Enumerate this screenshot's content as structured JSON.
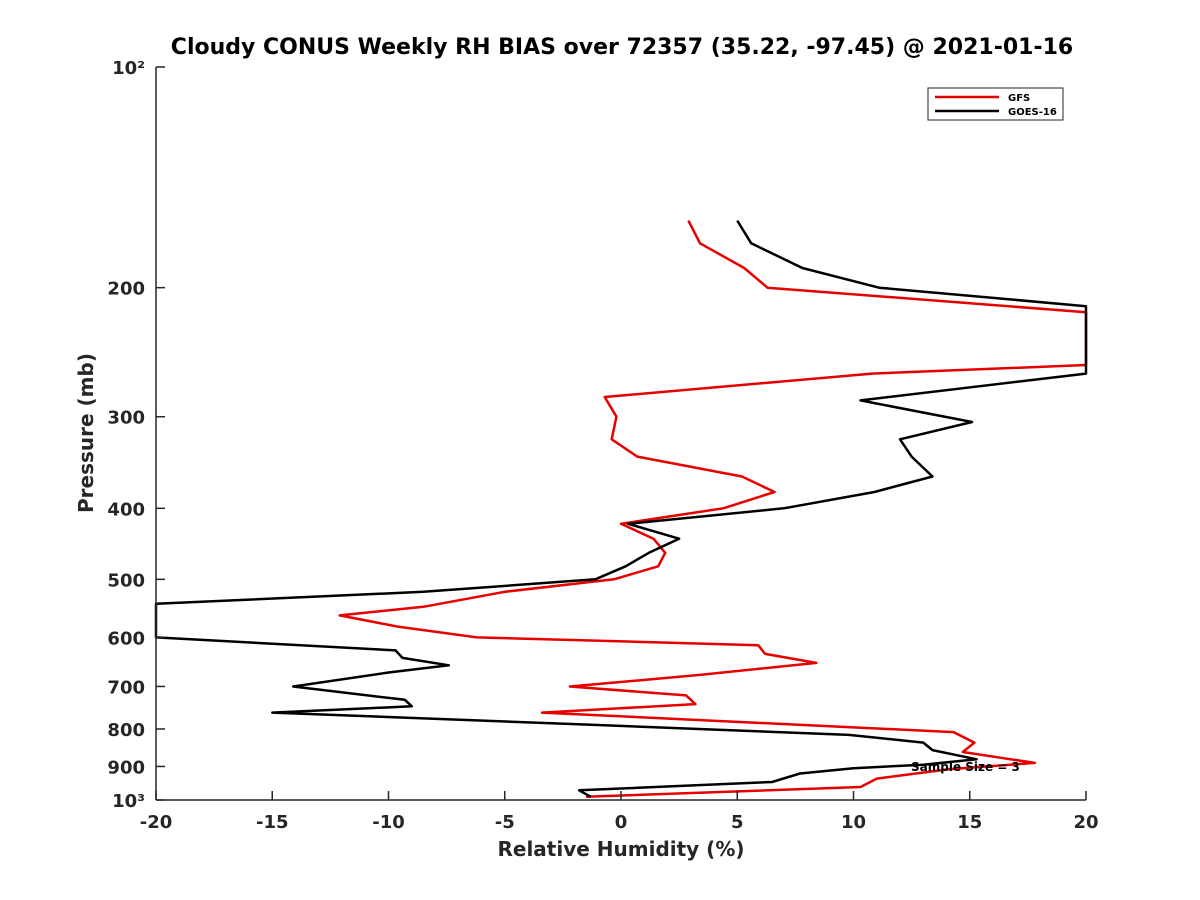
{
  "chart_data": {
    "type": "line",
    "title": "Cloudy CONUS Weekly RH BIAS over 72357 (35.22, -97.45) @ 2021-01-16",
    "xlabel": "Relative Humidity (%)",
    "ylabel": "Pressure (mb)",
    "xlim": [
      -20,
      20
    ],
    "ylim": [
      100,
      1000
    ],
    "y_scale": "log",
    "y_reversed": true,
    "x_ticks": [
      -20,
      -15,
      -10,
      -5,
      0,
      5,
      10,
      15,
      20
    ],
    "x_tick_labels": [
      "-20",
      "-15",
      "-10",
      "-5",
      "0",
      "5",
      "10",
      "15",
      "20"
    ],
    "y_ticks": [
      100,
      200,
      300,
      400,
      500,
      600,
      700,
      800,
      900,
      1000
    ],
    "y_tick_labels": [
      "10²",
      "200",
      "300",
      "400",
      "500",
      "600",
      "700",
      "800",
      "900",
      "10³"
    ],
    "grid": false,
    "legend_position": "top-right",
    "annotation": "Sample Size = 3",
    "series": [
      {
        "name": "GFS",
        "color": "#e60000",
        "points": [
          [
            2.9,
            162
          ],
          [
            3.4,
            174
          ],
          [
            5.3,
            188
          ],
          [
            6.3,
            200
          ],
          [
            20.5,
            216
          ],
          [
            20.5,
            255
          ],
          [
            10.8,
            262
          ],
          [
            -0.7,
            282
          ],
          [
            -0.2,
            300
          ],
          [
            -0.4,
            322
          ],
          [
            0.7,
            340
          ],
          [
            5.2,
            362
          ],
          [
            6.6,
            380
          ],
          [
            4.4,
            400
          ],
          [
            0.0,
            420
          ],
          [
            1.4,
            440
          ],
          [
            1.9,
            460
          ],
          [
            1.6,
            480
          ],
          [
            -0.3,
            500
          ],
          [
            -5.0,
            520
          ],
          [
            -8.5,
            545
          ],
          [
            -12.1,
            560
          ],
          [
            -9.6,
            580
          ],
          [
            -6.2,
            600
          ],
          [
            5.9,
            615
          ],
          [
            6.2,
            632
          ],
          [
            8.4,
            650
          ],
          [
            3.4,
            675
          ],
          [
            -2.2,
            700
          ],
          [
            2.8,
            720
          ],
          [
            3.2,
            740
          ],
          [
            -3.4,
            760
          ],
          [
            14.3,
            808
          ],
          [
            15.2,
            835
          ],
          [
            14.7,
            860
          ],
          [
            17.8,
            890
          ],
          [
            14.1,
            908
          ],
          [
            11.0,
            935
          ],
          [
            10.3,
            960
          ],
          [
            -1.5,
            990
          ]
        ]
      },
      {
        "name": "GOES-16",
        "color": "#000000",
        "points": [
          [
            5.0,
            162
          ],
          [
            5.6,
            174
          ],
          [
            7.8,
            188
          ],
          [
            11.1,
            200
          ],
          [
            20.5,
            212
          ],
          [
            20.5,
            262
          ],
          [
            10.3,
            285
          ],
          [
            15.1,
            305
          ],
          [
            12.0,
            322
          ],
          [
            12.5,
            340
          ],
          [
            13.4,
            362
          ],
          [
            10.9,
            380
          ],
          [
            7.0,
            400
          ],
          [
            0.3,
            420
          ],
          [
            2.5,
            440
          ],
          [
            1.2,
            460
          ],
          [
            0.2,
            480
          ],
          [
            -1.1,
            500
          ],
          [
            -8.5,
            520
          ],
          [
            -20.0,
            540
          ],
          [
            -20.3,
            600
          ],
          [
            -9.7,
            625
          ],
          [
            -9.4,
            640
          ],
          [
            -7.4,
            655
          ],
          [
            -10.0,
            670
          ],
          [
            -14.1,
            700
          ],
          [
            -9.3,
            730
          ],
          [
            -9.0,
            745
          ],
          [
            -15.0,
            760
          ],
          [
            -1.0,
            790
          ],
          [
            9.8,
            815
          ],
          [
            13.0,
            835
          ],
          [
            13.4,
            855
          ],
          [
            15.3,
            880
          ],
          [
            13.0,
            895
          ],
          [
            10.0,
            905
          ],
          [
            7.7,
            920
          ],
          [
            6.5,
            945
          ],
          [
            -1.8,
            970
          ],
          [
            -1.3,
            990
          ]
        ]
      }
    ]
  }
}
